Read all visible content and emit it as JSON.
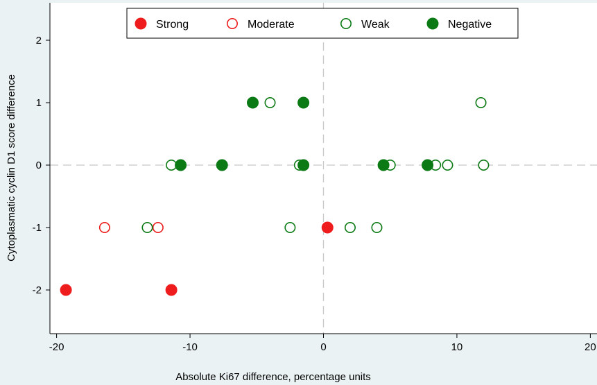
{
  "chart_data": {
    "type": "scatter",
    "xlabel": "Absolute Ki67 difference, percentage units",
    "ylabel": "Cytoplasmatic cyclin D1 score difference",
    "xlim": [
      -20.5,
      20.5
    ],
    "ylim": [
      -2.7,
      2.6
    ],
    "xticks": [
      -20,
      -10,
      0,
      10,
      20
    ],
    "yticks": [
      2,
      1,
      0,
      -1,
      -2
    ],
    "reference_lines": {
      "x": 0,
      "y": 0
    },
    "legend_position": "top",
    "colors": {
      "red": "#ee1c1c",
      "green": "#0b7a14",
      "plot_bg": "#ffffff",
      "outer_bg": "#eaf2f3",
      "refline": "#c8c8c8"
    },
    "series": [
      {
        "name": "Strong",
        "marker": "filled",
        "color": "#ee1c1c",
        "points": [
          {
            "x": -19.3,
            "y": -2
          },
          {
            "x": -11.4,
            "y": -2
          },
          {
            "x": 0.3,
            "y": -1
          }
        ]
      },
      {
        "name": "Moderate",
        "marker": "hollow",
        "color": "#ee1c1c",
        "points": [
          {
            "x": -16.4,
            "y": -1
          },
          {
            "x": -12.4,
            "y": -1
          }
        ]
      },
      {
        "name": "Weak",
        "marker": "hollow",
        "color": "#0b7a14",
        "points": [
          {
            "x": -4.0,
            "y": 1
          },
          {
            "x": 11.8,
            "y": 1
          },
          {
            "x": -11.4,
            "y": 0
          },
          {
            "x": -1.8,
            "y": 0
          },
          {
            "x": 5.0,
            "y": 0
          },
          {
            "x": 8.4,
            "y": 0
          },
          {
            "x": 9.3,
            "y": 0
          },
          {
            "x": 12.0,
            "y": 0
          },
          {
            "x": -13.2,
            "y": -1
          },
          {
            "x": -2.5,
            "y": -1
          },
          {
            "x": 2.0,
            "y": -1
          },
          {
            "x": 4.0,
            "y": -1
          }
        ]
      },
      {
        "name": "Negative",
        "marker": "filled",
        "color": "#0b7a14",
        "points": [
          {
            "x": -5.3,
            "y": 1
          },
          {
            "x": -1.5,
            "y": 1
          },
          {
            "x": -10.7,
            "y": 0
          },
          {
            "x": -7.6,
            "y": 0
          },
          {
            "x": -1.5,
            "y": 0
          },
          {
            "x": 4.5,
            "y": 0
          },
          {
            "x": 7.8,
            "y": 0
          }
        ]
      }
    ]
  }
}
